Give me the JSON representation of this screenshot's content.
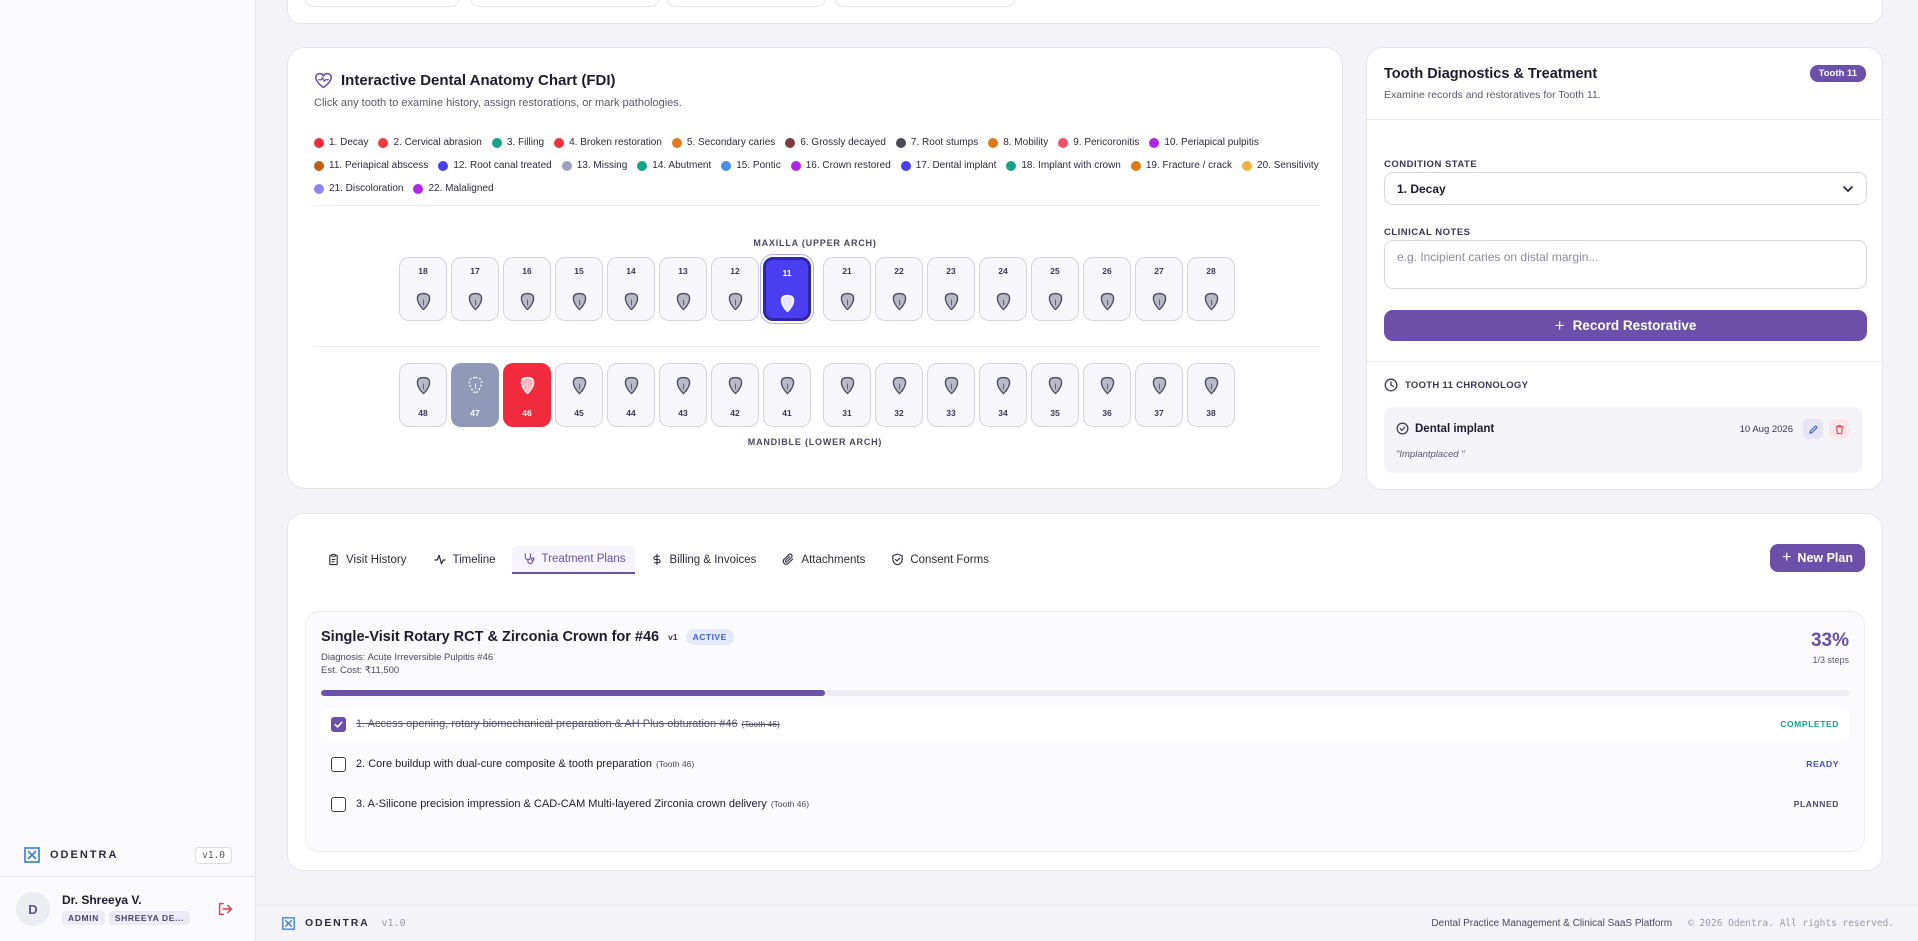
{
  "sidebar": {
    "brand": "ODENTRA",
    "version": "v1.0",
    "user": {
      "initial": "D",
      "name": "Dr. Shreeya V.",
      "role": "ADMIN",
      "clinic": "SHREEYA DE..."
    }
  },
  "chart": {
    "title": "Interactive Dental Anatomy Chart (FDI)",
    "subtitle": "Click any tooth to examine history, assign restorations, or mark pathologies.",
    "legend": [
      {
        "label": "1. Decay",
        "color": "#f22a3e"
      },
      {
        "label": "2. Cervical abrasion",
        "color": "#ef3b3b"
      },
      {
        "label": "3. Filling",
        "color": "#16a38a"
      },
      {
        "label": "4. Broken restoration",
        "color": "#ee3040"
      },
      {
        "label": "5. Secondary caries",
        "color": "#e07a1a"
      },
      {
        "label": "6. Grossly decayed",
        "color": "#7a3d3d"
      },
      {
        "label": "7. Root stumps",
        "color": "#4a4a58"
      },
      {
        "label": "8. Mobility",
        "color": "#d97b14"
      },
      {
        "label": "9. Pericoronitis",
        "color": "#f0506e"
      },
      {
        "label": "10. Periapical pulpitis",
        "color": "#b026e8"
      },
      {
        "label": "11. Periapical abscess",
        "color": "#b8601a"
      },
      {
        "label": "12. Root canal treated",
        "color": "#4a3ff0"
      },
      {
        "label": "13. Missing",
        "color": "#9aa4bf"
      },
      {
        "label": "14. Abutment",
        "color": "#16a38a"
      },
      {
        "label": "15. Pontic",
        "color": "#4a90e2"
      },
      {
        "label": "16. Crown restored",
        "color": "#b026e8"
      },
      {
        "label": "17. Dental implant",
        "color": "#4a3ff0"
      },
      {
        "label": "18. Implant with crown",
        "color": "#16a38a"
      },
      {
        "label": "19. Fracture / crack",
        "color": "#d97b14"
      },
      {
        "label": "20. Sensitivity",
        "color": "#f2b03c"
      },
      {
        "label": "21. Discoloration",
        "color": "#8e86ee"
      },
      {
        "label": "22. Malaligned",
        "color": "#b026e8"
      }
    ],
    "maxilla_label": "MAXILLA (UPPER ARCH)",
    "mandible_label": "MANDIBLE (LOWER ARCH)",
    "upper_teeth": [
      {
        "num": "18",
        "state": "normal"
      },
      {
        "num": "17",
        "state": "normal"
      },
      {
        "num": "16",
        "state": "normal"
      },
      {
        "num": "15",
        "state": "normal"
      },
      {
        "num": "14",
        "state": "normal"
      },
      {
        "num": "13",
        "state": "normal"
      },
      {
        "num": "12",
        "state": "normal"
      },
      {
        "num": "11",
        "state": "selected"
      },
      {
        "num": "21",
        "state": "normal"
      },
      {
        "num": "22",
        "state": "normal"
      },
      {
        "num": "23",
        "state": "normal"
      },
      {
        "num": "24",
        "state": "normal"
      },
      {
        "num": "25",
        "state": "normal"
      },
      {
        "num": "26",
        "state": "normal"
      },
      {
        "num": "27",
        "state": "normal"
      },
      {
        "num": "28",
        "state": "normal"
      }
    ],
    "lower_teeth": [
      {
        "num": "48",
        "state": "normal"
      },
      {
        "num": "47",
        "state": "missing"
      },
      {
        "num": "46",
        "state": "decay"
      },
      {
        "num": "45",
        "state": "normal"
      },
      {
        "num": "44",
        "state": "normal"
      },
      {
        "num": "43",
        "state": "normal"
      },
      {
        "num": "42",
        "state": "normal"
      },
      {
        "num": "41",
        "state": "normal"
      },
      {
        "num": "31",
        "state": "normal"
      },
      {
        "num": "32",
        "state": "normal"
      },
      {
        "num": "33",
        "state": "normal"
      },
      {
        "num": "34",
        "state": "normal"
      },
      {
        "num": "35",
        "state": "normal"
      },
      {
        "num": "36",
        "state": "normal"
      },
      {
        "num": "37",
        "state": "normal"
      },
      {
        "num": "38",
        "state": "normal"
      }
    ]
  },
  "diagnostics": {
    "title": "Tooth Diagnostics & Treatment",
    "subtitle": "Examine records and restoratives for Tooth 11.",
    "badge": "Tooth 11",
    "condition_label": "CONDITION STATE",
    "condition_value": "1. Decay",
    "notes_label": "CLINICAL NOTES",
    "notes_placeholder": "e.g. Incipient caries on distal margin...",
    "record_button": "Record Restorative",
    "chronology_label": "TOOTH 11 CHRONOLOGY",
    "chronology": [
      {
        "title": "Dental implant",
        "date": "10 Aug 2026",
        "note": "\"Implantplaced \""
      }
    ]
  },
  "tabs": [
    {
      "label": "Visit History",
      "icon": "clipboard-icon"
    },
    {
      "label": "Timeline",
      "icon": "activity-icon"
    },
    {
      "label": "Treatment Plans",
      "icon": "stethoscope-icon"
    },
    {
      "label": "Billing & Invoices",
      "icon": "dollar-icon"
    },
    {
      "label": "Attachments",
      "icon": "paperclip-icon"
    },
    {
      "label": "Consent Forms",
      "icon": "shield-check-icon"
    }
  ],
  "active_tab": "Treatment Plans",
  "new_plan_button": "New Plan",
  "plan": {
    "title": "Single-Visit Rotary RCT & Zirconia Crown for #46",
    "version": "v1",
    "status": "ACTIVE",
    "diagnosis": "Diagnosis: Acute Irreversible Pulpitis #46",
    "cost": "Est. Cost: ₹11,500",
    "percent": "33%",
    "progress_fraction": 0.33,
    "steps_count": "1/3 steps",
    "steps": [
      {
        "text": "1. Access opening, rotary biomechanical preparation & AH Plus obturation #46",
        "tooth": "(Tooth 46)",
        "status": "COMPLETED",
        "status_color": "#16a38a",
        "done": true
      },
      {
        "text": "2. Core buildup with dual-cure composite & tooth preparation",
        "tooth": "(Tooth 46)",
        "status": "READY",
        "status_color": "#3f4fd9",
        "done": false
      },
      {
        "text": "3. A-Silicone precision impression & CAD-CAM Multi-layered Zirconia crown delivery",
        "tooth": "(Tooth 46)",
        "status": "PLANNED",
        "status_color": "#4a4760",
        "done": false
      }
    ]
  },
  "footer": {
    "brand": "ODENTRA",
    "version": "v1.0",
    "tagline": "Dental Practice Management & Clinical SaaS Platform",
    "copyright": "© 2026 Odentra. All rights reserved."
  },
  "colors": {
    "accent": "#6b4fa8",
    "selected_tooth": "#4a3ff0",
    "decay": "#f22a3e",
    "missing": "#8e9ab8"
  }
}
